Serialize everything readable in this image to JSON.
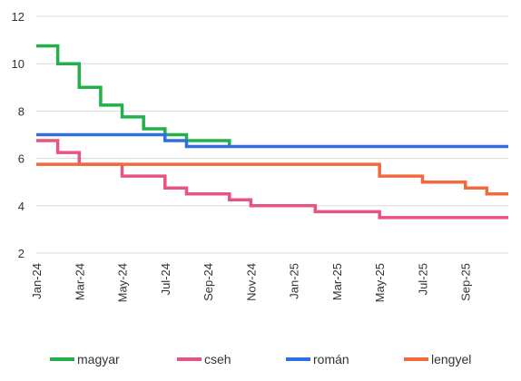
{
  "chart_data": {
    "type": "line",
    "step": true,
    "title": "",
    "xlabel": "",
    "ylabel": "",
    "ylim": [
      2,
      12
    ],
    "yticks": [
      2,
      4,
      6,
      8,
      10,
      12
    ],
    "grid": true,
    "legend_position": "bottom",
    "x_range": [
      "2024-01",
      "2025-11"
    ],
    "xticks": [
      "Jan-24",
      "Mar-24",
      "May-24",
      "Jul-24",
      "Sep-24",
      "Nov-24",
      "Jan-25",
      "Mar-25",
      "May-25",
      "Jul-25",
      "Sep-25"
    ],
    "series": [
      {
        "name": "magyar",
        "color": "#22b04b",
        "points": [
          [
            "2024-01",
            10.75
          ],
          [
            "2024-02",
            10.0
          ],
          [
            "2024-03",
            9.0
          ],
          [
            "2024-04",
            8.25
          ],
          [
            "2024-05",
            7.75
          ],
          [
            "2024-06",
            7.25
          ],
          [
            "2024-07",
            7.0
          ],
          [
            "2024-08",
            6.75
          ],
          [
            "2024-09",
            6.75
          ],
          [
            "2024-10",
            6.5
          ]
        ],
        "end": "2024-10"
      },
      {
        "name": "cseh",
        "color": "#e8537f",
        "points": [
          [
            "2024-01",
            6.75
          ],
          [
            "2024-02",
            6.25
          ],
          [
            "2024-03",
            5.75
          ],
          [
            "2024-05",
            5.25
          ],
          [
            "2024-07",
            4.75
          ],
          [
            "2024-08",
            4.5
          ],
          [
            "2024-10",
            4.25
          ],
          [
            "2024-11",
            4.0
          ],
          [
            "2025-02",
            3.75
          ],
          [
            "2025-05",
            3.5
          ]
        ],
        "end": "2025-11"
      },
      {
        "name": "román",
        "color": "#2f6fe0",
        "points": [
          [
            "2024-01",
            7.0
          ],
          [
            "2024-07",
            6.75
          ],
          [
            "2024-08",
            6.5
          ]
        ],
        "end": "2025-11"
      },
      {
        "name": "lengyel",
        "color": "#f26a3b",
        "points": [
          [
            "2024-01",
            5.75
          ],
          [
            "2025-05",
            5.25
          ],
          [
            "2025-07",
            5.0
          ],
          [
            "2025-09",
            4.75
          ],
          [
            "2025-10",
            4.5
          ]
        ],
        "end": "2025-11"
      }
    ]
  }
}
